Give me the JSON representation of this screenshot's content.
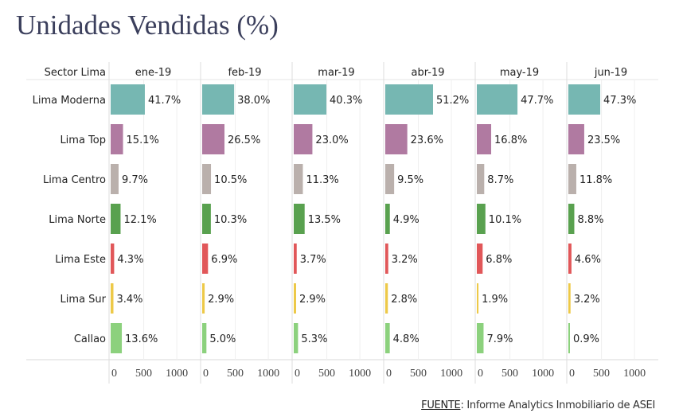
{
  "chart_data": {
    "type": "bar",
    "orientation": "horizontal",
    "title": "Unidades Vendidas (%)",
    "row_header": "Sector Lima",
    "categories": [
      "Lima Moderna",
      "Lima Top",
      "Lima Centro",
      "Lima Norte",
      "Lima Este",
      "Lima Sur",
      "Callao"
    ],
    "colors": [
      "#76b7b2",
      "#b07aa1",
      "#bab0ac",
      "#59a14f",
      "#e15759",
      "#edc948",
      "#8cd17d"
    ],
    "x_ticks": [
      "0",
      "500",
      "1000"
    ],
    "xlim": [
      0,
      1360
    ],
    "grid": true,
    "panels": [
      {
        "month": "ene-19",
        "labels": [
          "41.7%",
          "15.1%",
          "9.7%",
          "12.1%",
          "4.3%",
          "3.4%",
          "13.6%"
        ],
        "values": [
          517,
          187,
          120,
          150,
          53,
          42,
          169
        ]
      },
      {
        "month": "feb-19",
        "labels": [
          "38.0%",
          "26.5%",
          "10.5%",
          "10.3%",
          "6.9%",
          "2.9%",
          "5.0%"
        ],
        "values": [
          483,
          337,
          133,
          131,
          88,
          37,
          64
        ]
      },
      {
        "month": "mar-19",
        "labels": [
          "40.3%",
          "23.0%",
          "11.3%",
          "13.5%",
          "3.7%",
          "2.9%",
          "5.3%"
        ],
        "values": [
          494,
          282,
          138,
          165,
          45,
          36,
          65
        ]
      },
      {
        "month": "abr-19",
        "labels": [
          "51.2%",
          "23.6%",
          "9.5%",
          "4.9%",
          "3.2%",
          "2.8%",
          "4.8%"
        ],
        "values": [
          722,
          333,
          134,
          69,
          45,
          39,
          68
        ]
      },
      {
        "month": "may-19",
        "labels": [
          "47.7%",
          "16.8%",
          "8.7%",
          "10.1%",
          "6.8%",
          "1.9%",
          "7.9%"
        ],
        "values": [
          615,
          217,
          112,
          130,
          88,
          25,
          102
        ]
      },
      {
        "month": "jun-19",
        "labels": [
          "47.3%",
          "23.5%",
          "11.8%",
          "8.8%",
          "4.6%",
          "3.2%",
          "0.9%"
        ],
        "values": [
          482,
          240,
          120,
          90,
          47,
          33,
          9
        ]
      }
    ]
  },
  "source": {
    "label": "FUENTE",
    "text": ": Informe Analytics Inmobiliario de ASEI"
  }
}
